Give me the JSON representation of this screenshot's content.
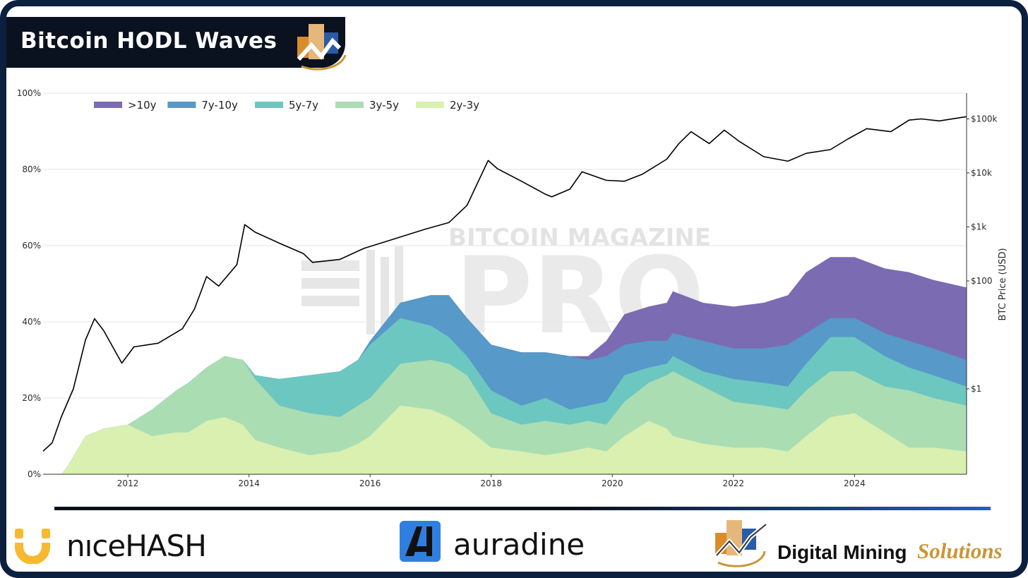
{
  "header": {
    "title": "Bitcoin HODL Waves"
  },
  "watermark": {
    "line1": "BITCOIN MAGAZINE",
    "line2": "PRO"
  },
  "sponsors": {
    "nicehash": "nıceHASH",
    "auradine": "auradine",
    "dms_main": "Digital Mining",
    "dms_accent": "Solutions"
  },
  "colors": {
    "gt10y": "#7b6bb2",
    "y7_10": "#5799c8",
    "y5_7": "#6cc7c0",
    "y3_5": "#abddb3",
    "y2_3": "#d9f0b0",
    "price": "#000000",
    "frame": "#0b1f3f",
    "accent_gold": "#c8963a"
  },
  "chart_data": {
    "type": "area",
    "stacked": true,
    "legend_position": "top-left",
    "x_label": "",
    "y_label": "",
    "y2_label": "BTC Price (USD)",
    "y_ticks": [
      "0%",
      "20%",
      "40%",
      "60%",
      "80%",
      "100%"
    ],
    "y_range": [
      0,
      100
    ],
    "y2_ticks": [
      "$1",
      "$100",
      "$1k",
      "$10k",
      "$100k"
    ],
    "y2_scale": "log",
    "x_ticks": [
      "2012",
      "2014",
      "2016",
      "2018",
      "2020",
      "2022",
      "2024"
    ],
    "x_range": [
      2010.6,
      2025.85
    ],
    "grid": true,
    "legend": [
      ">10y",
      "7y-10y",
      "5y-7y",
      "3y-5y",
      "2y-3y"
    ],
    "x": [
      2010.6,
      2010.9,
      2011.0,
      2011.3,
      2011.6,
      2012.0,
      2012.4,
      2012.8,
      2013.0,
      2013.3,
      2013.6,
      2013.9,
      2014.1,
      2014.5,
      2015.0,
      2015.5,
      2015.8,
      2016.0,
      2016.5,
      2017.0,
      2017.3,
      2017.6,
      2018.0,
      2018.5,
      2018.9,
      2019.3,
      2019.6,
      2019.9,
      2020.2,
      2020.6,
      2020.9,
      2021.0,
      2021.5,
      2022.0,
      2022.5,
      2022.9,
      2023.2,
      2023.6,
      2024.0,
      2024.5,
      2024.9,
      2025.3,
      2025.85
    ],
    "series": [
      {
        "name": "2y-3y",
        "values": [
          0,
          0,
          2,
          10,
          12,
          13,
          10,
          11,
          11,
          14,
          15,
          13,
          9,
          7,
          5,
          6,
          8,
          10,
          18,
          17,
          15,
          12,
          7,
          6,
          5,
          6,
          7,
          6,
          10,
          14,
          12,
          10,
          8,
          7,
          7,
          6,
          10,
          15,
          16,
          11,
          7,
          7,
          6
        ]
      },
      {
        "name": "3y-5y",
        "values": [
          0,
          0,
          2,
          10,
          12,
          13,
          17,
          22,
          24,
          28,
          31,
          30,
          25,
          18,
          16,
          15,
          18,
          20,
          29,
          30,
          29,
          26,
          16,
          13,
          14,
          13,
          14,
          13,
          19,
          24,
          26,
          27,
          23,
          19,
          18,
          17,
          22,
          27,
          27,
          23,
          22,
          20,
          18
        ]
      },
      {
        "name": "5y-7y",
        "values": [
          0,
          0,
          2,
          10,
          12,
          13,
          17,
          22,
          24,
          28,
          31,
          30,
          26,
          25,
          26,
          27,
          30,
          34,
          41,
          39,
          36,
          31,
          22,
          18,
          20,
          17,
          18,
          19,
          26,
          28,
          29,
          31,
          27,
          25,
          24,
          23,
          29,
          36,
          36,
          31,
          28,
          26,
          23
        ]
      },
      {
        "name": "7y-10y",
        "values": [
          0,
          0,
          2,
          10,
          12,
          13,
          17,
          22,
          24,
          28,
          31,
          30,
          26,
          25,
          26,
          27,
          30,
          35,
          45,
          47,
          47,
          41,
          34,
          32,
          32,
          31,
          30,
          31,
          34,
          35,
          35,
          37,
          35,
          33,
          33,
          34,
          37,
          41,
          41,
          37,
          35,
          33,
          30
        ]
      },
      {
        "name": ">10y",
        "values": [
          0,
          0,
          2,
          10,
          12,
          13,
          17,
          22,
          24,
          28,
          31,
          30,
          26,
          25,
          26,
          27,
          30,
          35,
          45,
          47,
          47,
          41,
          34,
          32,
          32,
          31,
          31,
          35,
          42,
          44,
          45,
          48,
          45,
          44,
          45,
          47,
          53,
          57,
          57,
          54,
          53,
          51,
          49
        ]
      }
    ],
    "price_series": {
      "name": "BTC Price (USD)",
      "x": [
        2010.6,
        2010.75,
        2010.9,
        2011.1,
        2011.3,
        2011.45,
        2011.6,
        2011.9,
        2012.1,
        2012.5,
        2012.9,
        2013.1,
        2013.3,
        2013.5,
        2013.8,
        2013.93,
        2014.1,
        2014.5,
        2014.9,
        2015.05,
        2015.5,
        2015.9,
        2016.4,
        2016.9,
        2017.3,
        2017.6,
        2017.95,
        2018.1,
        2018.5,
        2018.9,
        2019.0,
        2019.3,
        2019.5,
        2019.9,
        2020.2,
        2020.5,
        2020.9,
        2021.1,
        2021.3,
        2021.6,
        2021.85,
        2022.1,
        2022.5,
        2022.9,
        2023.2,
        2023.6,
        2023.9,
        2024.2,
        2024.6,
        2024.9,
        2025.1,
        2025.4,
        2025.85
      ],
      "values": [
        0.07,
        0.1,
        0.3,
        1,
        8,
        20,
        12,
        3,
        6,
        7,
        13,
        30,
        120,
        80,
        200,
        1100,
        800,
        500,
        320,
        220,
        250,
        400,
        600,
        900,
        1200,
        2500,
        17000,
        12000,
        7000,
        4000,
        3600,
        5000,
        10500,
        7300,
        7000,
        9500,
        18000,
        35000,
        58000,
        35000,
        62000,
        38000,
        20000,
        16500,
        23000,
        27000,
        43000,
        66000,
        58000,
        95000,
        100000,
        92000,
        110000
      ]
    }
  }
}
